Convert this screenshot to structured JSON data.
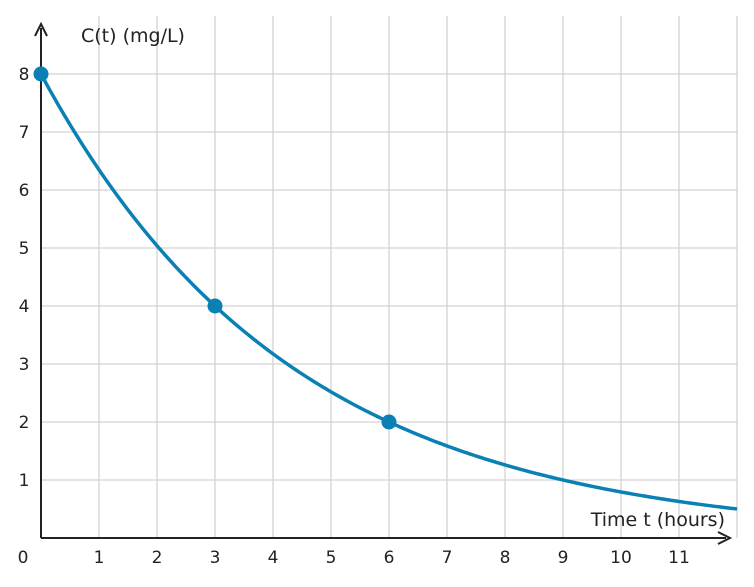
{
  "chart_data": {
    "type": "line",
    "xlabel": "Time t (hours)",
    "ylabel": "C(t) (mg/L)",
    "x_ticks": [
      "0",
      "1",
      "2",
      "3",
      "4",
      "5",
      "6",
      "7",
      "8",
      "9",
      "10",
      "11"
    ],
    "y_ticks": [
      "1",
      "2",
      "3",
      "4",
      "5",
      "6",
      "7",
      "8"
    ],
    "xlim": [
      0,
      12
    ],
    "ylim": [
      0,
      8.8
    ],
    "grid": true,
    "series": [
      {
        "function": "C(t) = 8 * 2^(-t/3)",
        "x": [
          0,
          1,
          2,
          3,
          4,
          5,
          6,
          7,
          8,
          9,
          10,
          11,
          12
        ],
        "y": [
          8,
          6.35,
          5.04,
          4,
          3.17,
          2.52,
          2,
          1.59,
          1.26,
          1,
          0.79,
          0.63,
          0.5
        ]
      }
    ],
    "highlighted_points": [
      {
        "x": 0,
        "y": 8
      },
      {
        "x": 3,
        "y": 4
      },
      {
        "x": 6,
        "y": 2
      }
    ],
    "colors": {
      "curve": "#0a80b5",
      "points": "#0a80b5",
      "grid": "#d3d3d3",
      "axis": "#222222"
    }
  }
}
